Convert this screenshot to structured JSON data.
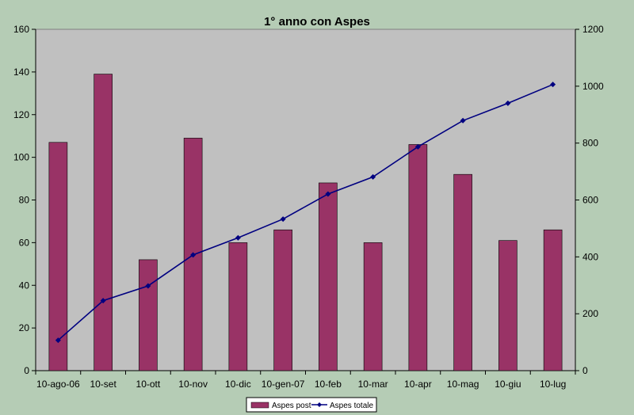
{
  "chart_data": {
    "type": "bar",
    "title": "1° anno con Aspes",
    "categories": [
      "10-ago-06",
      "10-set",
      "10-ott",
      "10-nov",
      "10-dic",
      "10-gen-07",
      "10-feb",
      "10-mar",
      "10-apr",
      "10-mag",
      "10-giu",
      "10-lug"
    ],
    "series": [
      {
        "name": "Aspes post",
        "type": "bar",
        "axis": "left",
        "color": "#993366",
        "values": [
          107,
          139,
          52,
          109,
          60,
          66,
          88,
          60,
          106,
          92,
          61,
          66
        ]
      },
      {
        "name": "Aspes totale",
        "type": "line",
        "axis": "right",
        "color": "#000080",
        "values": [
          107,
          246,
          298,
          407,
          467,
          533,
          621,
          681,
          787,
          879,
          940,
          1006
        ]
      }
    ],
    "ylim": [
      0,
      160
    ],
    "yticks": [
      0,
      20,
      40,
      60,
      80,
      100,
      120,
      140,
      160
    ],
    "y2lim": [
      0,
      1200
    ],
    "y2ticks": [
      0,
      200,
      400,
      600,
      800,
      1000,
      1200
    ],
    "legend_position": "bottom",
    "plot_background": "#c0c0c0"
  }
}
